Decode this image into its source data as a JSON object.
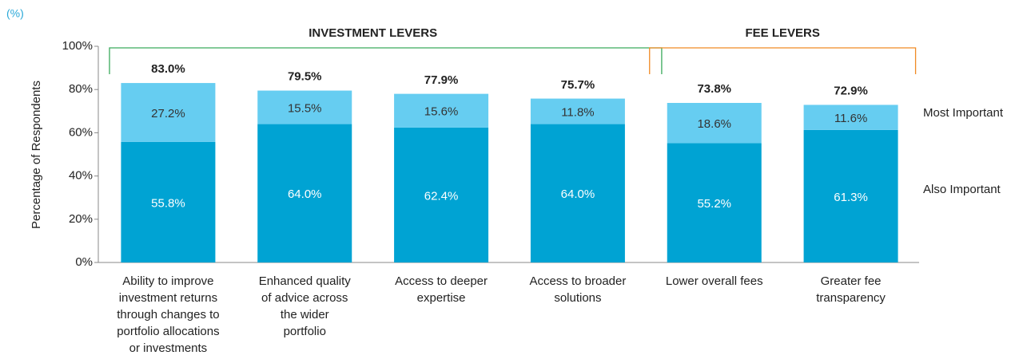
{
  "chart_data": {
    "type": "stacked_bar",
    "unit_label": "(%)",
    "y_label": "Percentage of Respondents",
    "categories": [
      [
        "Ability to improve",
        "investment returns",
        "through changes to",
        "portfolio allocations",
        "or investments"
      ],
      [
        "Enhanced quality",
        "of advice across",
        "the wider",
        "portfolio"
      ],
      [
        "Access to deeper",
        "expertise"
      ],
      [
        "Access to broader",
        "solutions"
      ],
      [
        "Lower overall fees"
      ],
      [
        "Greater fee",
        "transparency"
      ]
    ],
    "series": [
      {
        "name": "Also Important",
        "color": "#00a3d3",
        "values": [
          55.8,
          64.0,
          62.4,
          64.0,
          55.2,
          61.3
        ],
        "value_labels": [
          "55.8%",
          "64.0%",
          "62.4%",
          "64.0%",
          "55.2%",
          "61.3%"
        ]
      },
      {
        "name": "Most Important",
        "color": "#66cdf1",
        "values": [
          27.2,
          15.5,
          15.6,
          11.8,
          18.6,
          11.6
        ],
        "value_labels": [
          "27.2%",
          "15.5%",
          "15.6%",
          "11.8%",
          "18.6%",
          "11.6%"
        ]
      }
    ],
    "totals": [
      83.0,
      79.5,
      77.9,
      75.7,
      73.8,
      72.9
    ],
    "total_labels": [
      "83.0%",
      "79.5%",
      "77.9%",
      "75.7%",
      "73.8%",
      "72.9%"
    ],
    "groups": [
      {
        "label": "INVESTMENT LEVERS",
        "count": 4,
        "color": "#3aaa5c"
      },
      {
        "label": "FEE LEVERS",
        "count": 2,
        "color": "#f08a24"
      }
    ],
    "ylim": [
      0,
      100
    ],
    "yticks": [
      {
        "value": 0,
        "label": "0%"
      },
      {
        "value": 20,
        "label": "20%"
      },
      {
        "value": 40,
        "label": "40%"
      },
      {
        "value": 60,
        "label": "60%"
      },
      {
        "value": 80,
        "label": "80%"
      },
      {
        "value": 100,
        "label": "100%"
      }
    ]
  }
}
